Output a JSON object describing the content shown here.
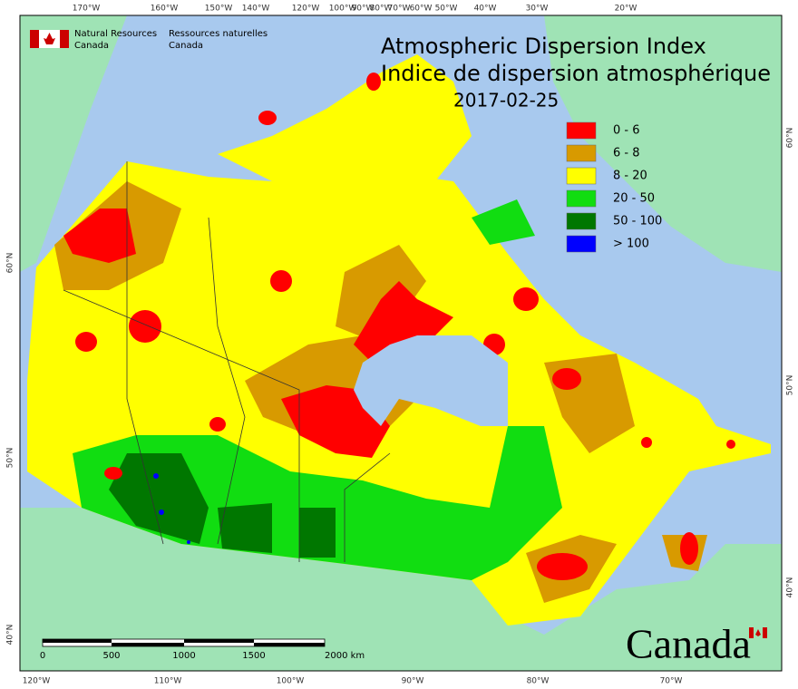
{
  "header": {
    "title_en": "Atmospheric Dispersion Index",
    "title_fr": "Indice de dispersion atmosphérique",
    "date": "2017-02-25"
  },
  "branding": {
    "department_en": [
      "Natural Resources",
      "Canada"
    ],
    "department_fr": [
      "Ressources naturelles",
      "Canada"
    ],
    "wordmark": "Canada"
  },
  "legend": [
    {
      "label": "0 - 6",
      "color": "#ff0000"
    },
    {
      "label": "6 - 8",
      "color": "#d89a00"
    },
    {
      "label": "8 - 20",
      "color": "#ffff00"
    },
    {
      "label": "20 - 50",
      "color": "#11dd11"
    },
    {
      "label": "50 - 100",
      "color": "#007700"
    },
    {
      "label": "> 100",
      "color": "#0000ff"
    }
  ],
  "top_longitudes": [
    "170°W",
    "160°W",
    "150°W",
    "140°W",
    "120°W",
    "100°W",
    "90°W",
    "80°W",
    "70°W",
    "60°W",
    "50°W",
    "40°W",
    "30°W",
    "20°W"
  ],
  "bottom_longitudes": [
    "120°W",
    "110°W",
    "100°W",
    "90°W",
    "80°W",
    "70°W"
  ],
  "left_latitudes": [
    "60°N",
    "50°N",
    "40°N"
  ],
  "right_latitudes": [
    "60°N",
    "50°N",
    "40°N"
  ],
  "scale_bar": {
    "labels": [
      "0",
      "500",
      "1000",
      "1500",
      "2000 km"
    ]
  }
}
